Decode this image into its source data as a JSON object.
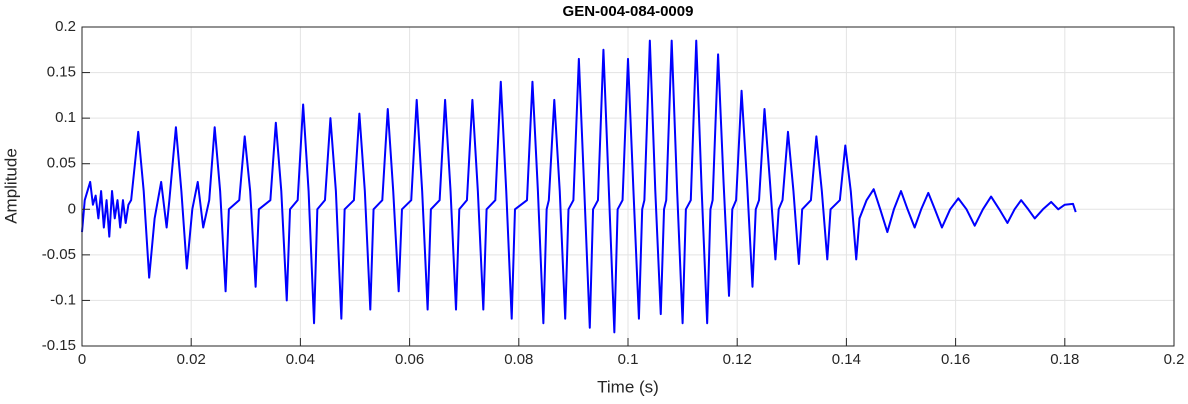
{
  "chart_data": {
    "type": "line",
    "title": "GEN-004-084-0009",
    "x_label": "Time (s)",
    "y_label": "Amplitude",
    "xlim": [
      0,
      0.2
    ],
    "ylim": [
      -0.15,
      0.2
    ],
    "xticks": [
      0,
      0.02,
      0.04,
      0.06,
      0.08,
      0.1,
      0.12,
      0.14,
      0.16,
      0.18,
      0.2
    ],
    "yticks": [
      -0.15,
      -0.1,
      -0.05,
      0,
      0.05,
      0.1,
      0.15,
      0.2
    ],
    "grid": true,
    "series": [
      {
        "color": "#0000ff",
        "x": [
          0,
          0.0005,
          0.001,
          0.0015,
          0.002,
          0.0025,
          0.003,
          0.0035,
          0.004,
          0.0045,
          0.005,
          0.0055,
          0.006,
          0.0065,
          0.007,
          0.0075,
          0.008,
          0.0085,
          0.009,
          0.0103,
          0.0113,
          0.0123,
          0.0133,
          0.0145,
          0.0155,
          0.016,
          0.0172,
          0.0182,
          0.0192,
          0.0202,
          0.0212,
          0.0222,
          0.0233,
          0.0243,
          0.0253,
          0.0263,
          0.0269,
          0.0288,
          0.0298,
          0.0308,
          0.0318,
          0.0324,
          0.0345,
          0.0355,
          0.0365,
          0.0375,
          0.0381,
          0.0395,
          0.0405,
          0.0415,
          0.0425,
          0.0431,
          0.0445,
          0.0455,
          0.0465,
          0.0475,
          0.0481,
          0.0498,
          0.0508,
          0.0518,
          0.0528,
          0.0534,
          0.055,
          0.056,
          0.057,
          0.058,
          0.0586,
          0.0603,
          0.0613,
          0.0623,
          0.0633,
          0.0639,
          0.0655,
          0.0665,
          0.0675,
          0.0685,
          0.0691,
          0.0705,
          0.0715,
          0.0725,
          0.0735,
          0.0741,
          0.0757,
          0.0767,
          0.0777,
          0.0787,
          0.0793,
          0.0815,
          0.0825,
          0.0835,
          0.0845,
          0.0851,
          0.0855,
          0.0865,
          0.0875,
          0.0885,
          0.0891,
          0.09,
          0.091,
          0.092,
          0.093,
          0.0936,
          0.0945,
          0.0955,
          0.0965,
          0.0975,
          0.0981,
          0.099,
          0.1,
          0.101,
          0.102,
          0.1026,
          0.103,
          0.104,
          0.105,
          0.106,
          0.1066,
          0.107,
          0.108,
          0.109,
          0.11,
          0.1106,
          0.1115,
          0.1125,
          0.1135,
          0.1145,
          0.1151,
          0.1155,
          0.1165,
          0.1175,
          0.1185,
          0.1191,
          0.1198,
          0.1208,
          0.1218,
          0.1228,
          0.1234,
          0.124,
          0.125,
          0.126,
          0.127,
          0.1276,
          0.1283,
          0.1293,
          0.1303,
          0.1313,
          0.1319,
          0.1335,
          0.1345,
          0.1355,
          0.1365,
          0.1371,
          0.1388,
          0.1398,
          0.1408,
          0.1418,
          0.1424,
          0.1437,
          0.145,
          0.1462,
          0.1475,
          0.1487,
          0.15,
          0.1512,
          0.1525,
          0.1537,
          0.155,
          0.1562,
          0.1575,
          0.159,
          0.1605,
          0.162,
          0.1635,
          0.165,
          0.1665,
          0.168,
          0.1695,
          0.1708,
          0.172,
          0.1733,
          0.1745,
          0.176,
          0.1775,
          0.1788,
          0.18,
          0.1815,
          0.182
        ],
        "values": [
          -0.025,
          0.01,
          0.02,
          0.03,
          0.005,
          0.015,
          -0.01,
          0.02,
          -0.02,
          0.01,
          -0.03,
          0.02,
          -0.01,
          0.01,
          -0.02,
          0.01,
          -0.015,
          0.005,
          0.01,
          0.085,
          0.02,
          -0.075,
          -0.01,
          0.03,
          -0.02,
          0.01,
          0.09,
          0.02,
          -0.065,
          0,
          0.03,
          -0.02,
          0.01,
          0.09,
          0.02,
          -0.09,
          0,
          0.01,
          0.08,
          0.02,
          -0.085,
          0,
          0.01,
          0.095,
          0.02,
          -0.1,
          0,
          0.01,
          0.115,
          0.02,
          -0.125,
          0,
          0.01,
          0.1,
          0.02,
          -0.12,
          0,
          0.01,
          0.105,
          0.02,
          -0.11,
          0,
          0.01,
          0.11,
          0.02,
          -0.09,
          0,
          0.01,
          0.12,
          0.02,
          -0.11,
          0,
          0.01,
          0.12,
          0.02,
          -0.11,
          0,
          0.01,
          0.12,
          0.02,
          -0.11,
          0,
          0.01,
          0.14,
          0.02,
          -0.12,
          0,
          0.01,
          0.14,
          0.02,
          -0.125,
          0,
          0.01,
          0.12,
          0.02,
          -0.12,
          0,
          0.01,
          0.165,
          0.02,
          -0.13,
          0,
          0.01,
          0.175,
          0.02,
          -0.135,
          0,
          0.01,
          0.165,
          0.02,
          -0.12,
          0,
          0.01,
          0.185,
          0.02,
          -0.115,
          0,
          0.01,
          0.185,
          0.02,
          -0.125,
          0,
          0.01,
          0.185,
          0.02,
          -0.125,
          0,
          0.01,
          0.17,
          0.03,
          -0.095,
          0,
          0.01,
          0.13,
          0.03,
          -0.085,
          0,
          0.01,
          0.11,
          0.03,
          -0.055,
          0,
          0.01,
          0.085,
          0.02,
          -0.06,
          0,
          0.01,
          0.08,
          0.02,
          -0.055,
          0,
          0.01,
          0.07,
          0.02,
          -0.055,
          -0.01,
          0.01,
          0.022,
          0,
          -0.025,
          0,
          0.02,
          0,
          -0.02,
          0,
          0.018,
          0,
          -0.02,
          0,
          0.012,
          0,
          -0.018,
          0,
          0.014,
          0,
          -0.015,
          0,
          0.01,
          0,
          -0.01,
          0,
          0.008,
          0,
          0.005,
          0.006,
          -0.003
        ]
      }
    ]
  }
}
